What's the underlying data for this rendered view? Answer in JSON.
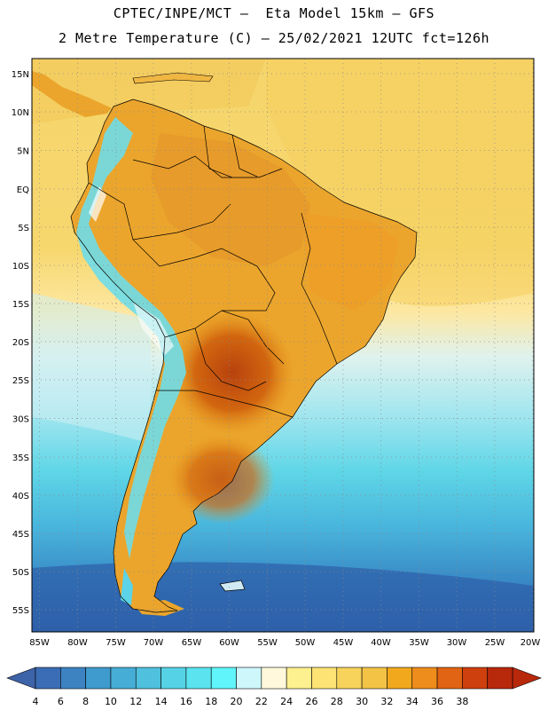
{
  "header": {
    "title_line1": "CPTEC/INPE/MCT –  Eta Model 15km – GFS",
    "title_line2": "2 Metre Temperature (C) – 25/02/2021 12UTC fct=126h"
  },
  "map": {
    "lat_labels": [
      "15N",
      "10N",
      "5N",
      "EQ",
      "5S",
      "10S",
      "15S",
      "20S",
      "25S",
      "30S",
      "35S",
      "40S",
      "45S",
      "50S",
      "55S"
    ],
    "lon_labels": [
      "85W",
      "80W",
      "75W",
      "70W",
      "65W",
      "60W",
      "55W",
      "50W",
      "45W",
      "40W",
      "35W",
      "30W",
      "25W",
      "20W"
    ],
    "region": "South America"
  },
  "colorbar": {
    "labels": [
      "4",
      "6",
      "8",
      "10",
      "12",
      "14",
      "16",
      "18",
      "20",
      "22",
      "24",
      "26",
      "28",
      "30",
      "32",
      "34",
      "36",
      "38"
    ],
    "colors": [
      "#3a6db5",
      "#3d83c2",
      "#3f9acd",
      "#46add6",
      "#4fc0de",
      "#55d2e6",
      "#5be3ef",
      "#5ff5fb",
      "#cef7fb",
      "#fff8dc",
      "#fdf08e",
      "#fde374",
      "#f8d35b",
      "#f3c346",
      "#f2a81c",
      "#ee8c1c",
      "#e06413",
      "#ce400d",
      "#b8280b"
    ],
    "low_color": "#3d63a8",
    "high_color": "#b8280b"
  }
}
